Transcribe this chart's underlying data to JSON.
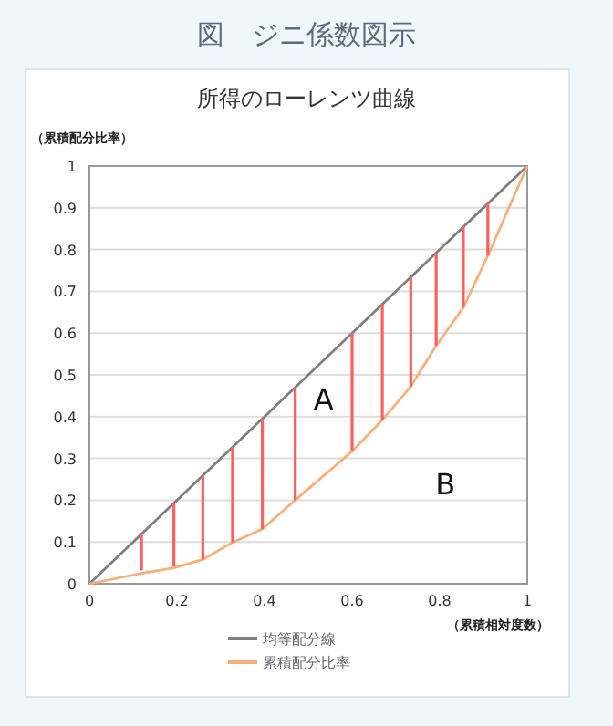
{
  "chart_data": {
    "type": "line",
    "title": "図　ジニ係数図示",
    "subtitle": "所得のローレンツ曲線",
    "xlabel": "（累積相対度数）",
    "ylabel": "（累積配分比率）",
    "xlim": [
      0,
      1
    ],
    "ylim": [
      0,
      1
    ],
    "xticks": [
      0,
      0.2,
      0.4,
      0.6,
      0.8,
      1
    ],
    "yticks": [
      0,
      0.1,
      0.2,
      0.3,
      0.4,
      0.5,
      0.6,
      0.7,
      0.8,
      0.9,
      1
    ],
    "grid": "y",
    "legend": "bottom",
    "marker": "none",
    "series": [
      {
        "name": "均等配分線",
        "color": "#7f7f7f",
        "x": [
          0,
          1
        ],
        "values": [
          0,
          1
        ]
      },
      {
        "name": "累積配分比率",
        "color": "#f8b07a",
        "x": [
          0,
          0.119,
          0.193,
          0.259,
          0.327,
          0.395,
          0.47,
          0.6,
          0.669,
          0.734,
          0.792,
          0.854,
          0.91,
          1
        ],
        "values": [
          0,
          0.025,
          0.038,
          0.058,
          0.099,
          0.131,
          0.2,
          0.317,
          0.392,
          0.472,
          0.57,
          0.661,
          0.785,
          1
        ]
      },
      {
        "type": "bar",
        "color": "#ff6060",
        "x": [
          0.119,
          0.193,
          0.259,
          0.327,
          0.395,
          0.47,
          0.6,
          0.669,
          0.734,
          0.792,
          0.854,
          0.91
        ],
        "base": [
          0.032,
          0.041,
          0.058,
          0.099,
          0.131,
          0.2,
          0.317,
          0.392,
          0.472,
          0.57,
          0.661,
          0.785
        ],
        "values": [
          0.087,
          0.152,
          0.201,
          0.228,
          0.264,
          0.27,
          0.283,
          0.277,
          0.262,
          0.222,
          0.193,
          0.125
        ]
      }
    ],
    "annotations": [
      "A",
      "B"
    ]
  }
}
